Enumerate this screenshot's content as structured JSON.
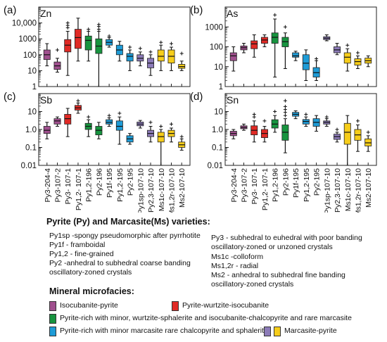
{
  "colors": {
    "isocubanite-pyrite": "#a0508e",
    "pyrite-wurtzite-isocubanite": "#e02a25",
    "pyrite-rich-wurtzite-sphalerite": "#17943f",
    "pyrite-rich-marcasite": "#1e9cd7",
    "marcasite-pyrite-purple": "#8c7bb8",
    "marcasite-pyrite-yellow": "#f6cd1a"
  },
  "chart_data": [
    {
      "type": "box",
      "panel_label": "(a)",
      "element": "Zn",
      "scale": "log",
      "ylim": [
        1,
        100000
      ],
      "yticks": [
        "1",
        "10",
        "100",
        "1000",
        "10,000"
      ],
      "categories": [
        "Py3-204-4",
        "Py3-107-2",
        "Py3- 107-1",
        "Py1,2- 107-1",
        "Py1,2-196",
        "Py2-196",
        "Py1f-195",
        "Py1,2-195",
        "Py2-195",
        "Py1sp-107-10",
        "Py2,3-107-10",
        "Ms1c-107-10",
        "Ms1,2r-107-10",
        "Ms2-107-10"
      ],
      "box_colors": [
        "isocubanite-pyrite",
        "isocubanite-pyrite",
        "pyrite-wurtzite-isocubanite",
        "pyrite-wurtzite-isocubanite",
        "pyrite-rich-wurtzite-sphalerite",
        "pyrite-rich-wurtzite-sphalerite",
        "pyrite-rich-marcasite",
        "pyrite-rich-marcasite",
        "pyrite-rich-marcasite",
        "marcasite-pyrite-purple",
        "marcasite-pyrite-purple",
        "marcasite-pyrite-yellow",
        "marcasite-pyrite-yellow",
        "marcasite-pyrite-yellow"
      ],
      "boxes": [
        {
          "min": 20,
          "q1": 50,
          "median": 100,
          "q3": 200,
          "max": 500,
          "outliers": []
        },
        {
          "min": 8,
          "q1": 12,
          "median": 20,
          "q3": 35,
          "max": 60,
          "outliers": [
            200
          ]
        },
        {
          "min": 5,
          "q1": 150,
          "median": 400,
          "q3": 900,
          "max": 3000,
          "outliers": [
            5000,
            7000,
            10000
          ]
        },
        {
          "min": 40,
          "q1": 250,
          "median": 1200,
          "q3": 4000,
          "max": 20000,
          "outliers": []
        },
        {
          "min": 40,
          "q1": 200,
          "median": 800,
          "q3": 1500,
          "max": 3000,
          "outliers": [
            4000
          ]
        },
        {
          "min": 1,
          "q1": 120,
          "median": 350,
          "q3": 1000,
          "max": 3000,
          "outliers": [
            4000,
            6000,
            8000
          ]
        },
        {
          "min": 300,
          "q1": 400,
          "median": 600,
          "q3": 900,
          "max": 1200,
          "outliers": [
            1500
          ]
        },
        {
          "min": 40,
          "q1": 100,
          "median": 200,
          "q3": 400,
          "max": 700,
          "outliers": []
        },
        {
          "min": 10,
          "q1": 40,
          "median": 80,
          "q3": 120,
          "max": 200,
          "outliers": [
            300
          ]
        },
        {
          "min": 20,
          "q1": 40,
          "median": 60,
          "q3": 100,
          "max": 150,
          "outliers": [
            250
          ]
        },
        {
          "min": 5,
          "q1": 15,
          "median": 30,
          "q3": 60,
          "max": 100,
          "outliers": [
            150
          ]
        },
        {
          "min": 10,
          "q1": 40,
          "median": 80,
          "q3": 200,
          "max": 400,
          "outliers": [
            600
          ]
        },
        {
          "min": 10,
          "q1": 30,
          "median": 80,
          "q3": 200,
          "max": 300,
          "outliers": [
            500
          ]
        },
        {
          "min": 10,
          "q1": 14,
          "median": 18,
          "q3": 25,
          "max": 40,
          "outliers": [
            120
          ]
        }
      ]
    },
    {
      "type": "box",
      "panel_label": "(b)",
      "element": "As",
      "scale": "log",
      "ylim": [
        1,
        10000
      ],
      "yticks": [
        "1",
        "10",
        "100",
        "1000"
      ],
      "categories": [
        "Py3-204-4",
        "Py3-107-2",
        "Py3- 107-1",
        "Py1,2- 107-1",
        "Py1,2-196",
        "Py2-196",
        "Py1f-195",
        "Py1,2-195",
        "Py2-195",
        "Py1sp-107-10",
        "Py2,3-107-10",
        "Ms1c-107-10",
        "Ms1,2r-107-10",
        "Ms2-107-10"
      ],
      "box_colors": [
        "isocubanite-pyrite",
        "isocubanite-pyrite",
        "pyrite-wurtzite-isocubanite",
        "pyrite-wurtzite-isocubanite",
        "pyrite-rich-wurtzite-sphalerite",
        "pyrite-rich-wurtzite-sphalerite",
        "pyrite-rich-marcasite",
        "pyrite-rich-marcasite",
        "pyrite-rich-marcasite",
        "marcasite-pyrite-purple",
        "marcasite-pyrite-purple",
        "marcasite-pyrite-yellow",
        "marcasite-pyrite-yellow",
        "marcasite-pyrite-yellow"
      ],
      "boxes": [
        {
          "min": 6,
          "q1": 20,
          "median": 35,
          "q3": 50,
          "max": 100,
          "outliers": []
        },
        {
          "min": 50,
          "q1": 70,
          "median": 90,
          "q3": 110,
          "max": 150,
          "outliers": []
        },
        {
          "min": 30,
          "q1": 80,
          "median": 140,
          "q3": 200,
          "max": 400,
          "outliers": []
        },
        {
          "min": 100,
          "q1": 150,
          "median": 220,
          "q3": 300,
          "max": 400,
          "outliers": []
        },
        {
          "min": 3,
          "q1": 150,
          "median": 300,
          "q3": 500,
          "max": 2500,
          "outliers": [
            4000
          ]
        },
        {
          "min": 8,
          "q1": 100,
          "median": 180,
          "q3": 300,
          "max": 500,
          "outliers": [
            1000
          ]
        },
        {
          "min": 20,
          "q1": 30,
          "median": 35,
          "q3": 50,
          "max": 60,
          "outliers": []
        },
        {
          "min": 2,
          "q1": 7,
          "median": 15,
          "q3": 40,
          "max": 70,
          "outliers": []
        },
        {
          "min": 2,
          "q1": 3,
          "median": 5,
          "q3": 9,
          "max": 20,
          "outliers": [
            25
          ]
        },
        {
          "min": 200,
          "q1": 230,
          "median": 270,
          "q3": 320,
          "max": 400,
          "outliers": []
        },
        {
          "min": 40,
          "q1": 50,
          "median": 70,
          "q3": 100,
          "max": 150,
          "outliers": []
        },
        {
          "min": 6,
          "q1": 15,
          "median": 30,
          "q3": 50,
          "max": 80,
          "outliers": [
            120
          ]
        },
        {
          "min": 8,
          "q1": 12,
          "median": 18,
          "q3": 25,
          "max": 35,
          "outliers": [
            50
          ]
        },
        {
          "min": 10,
          "q1": 15,
          "median": 20,
          "q3": 27,
          "max": 35,
          "outliers": []
        }
      ]
    },
    {
      "type": "box",
      "panel_label": "(c)",
      "element": "Sb",
      "scale": "log",
      "ylim": [
        0.01,
        100
      ],
      "yticks": [
        "0.01",
        "0.1",
        "1.0",
        "10"
      ],
      "categories": [
        "Py3-204-4",
        "Py3-107-2",
        "Py3- 107-1",
        "Py1,2- 107-1",
        "Py1,2-196",
        "Py2-196",
        "Py1f-195",
        "Py1,2-195",
        "Py2-195",
        "Py1sp-107-10",
        "Py2,3-107-10",
        "Ms1c-107-10",
        "Ms1,2r-107-10",
        "Ms2-107-10"
      ],
      "box_colors": [
        "isocubanite-pyrite",
        "isocubanite-pyrite",
        "pyrite-wurtzite-isocubanite",
        "pyrite-wurtzite-isocubanite",
        "pyrite-rich-wurtzite-sphalerite",
        "pyrite-rich-wurtzite-sphalerite",
        "pyrite-rich-marcasite",
        "pyrite-rich-marcasite",
        "pyrite-rich-marcasite",
        "marcasite-pyrite-purple",
        "marcasite-pyrite-purple",
        "marcasite-pyrite-yellow",
        "marcasite-pyrite-yellow",
        "marcasite-pyrite-yellow"
      ],
      "boxes": [
        {
          "min": 0.3,
          "q1": 0.6,
          "median": 0.9,
          "q3": 1.5,
          "max": 2.5,
          "outliers": []
        },
        {
          "min": 1.5,
          "q1": 2.0,
          "median": 3.0,
          "q3": 4.0,
          "max": 5.0,
          "outliers": []
        },
        {
          "min": 0.4,
          "q1": 2.0,
          "median": 4.0,
          "q3": 7.0,
          "max": 15,
          "outliers": []
        },
        {
          "min": 8,
          "q1": 12,
          "median": 16,
          "q3": 22,
          "max": 30,
          "outliers": [
            40
          ]
        },
        {
          "min": 0.4,
          "q1": 1.0,
          "median": 1.5,
          "q3": 2.2,
          "max": 3.5,
          "outliers": [
            5
          ]
        },
        {
          "min": 0.3,
          "q1": 0.5,
          "median": 0.9,
          "q3": 1.5,
          "max": 2.5,
          "outliers": []
        },
        {
          "min": 1.5,
          "q1": 2.0,
          "median": 2.5,
          "q3": 3.5,
          "max": 4.5,
          "outliers": [
            6
          ]
        },
        {
          "min": 0.15,
          "q1": 0.9,
          "median": 1.5,
          "q3": 3.0,
          "max": 5.0,
          "outliers": [
            8
          ]
        },
        {
          "min": 0.15,
          "q1": 0.2,
          "median": 0.3,
          "q3": 0.45,
          "max": 0.6,
          "outliers": []
        },
        {
          "min": 1.2,
          "q1": 1.6,
          "median": 2.0,
          "q3": 2.6,
          "max": 3.2,
          "outliers": []
        },
        {
          "min": 0.2,
          "q1": 0.4,
          "median": 0.6,
          "q3": 0.9,
          "max": 1.5,
          "outliers": [
            2.5
          ]
        },
        {
          "min": 0.01,
          "q1": 0.2,
          "median": 0.4,
          "q3": 0.7,
          "max": 1.0,
          "outliers": [
            1.5
          ]
        },
        {
          "min": 0.2,
          "q1": 0.4,
          "median": 0.6,
          "q3": 0.9,
          "max": 1.2,
          "outliers": [
            2
          ]
        },
        {
          "min": 0.07,
          "q1": 0.1,
          "median": 0.14,
          "q3": 0.2,
          "max": 0.3,
          "outliers": [
            0.4
          ]
        }
      ]
    },
    {
      "type": "box",
      "panel_label": "(d)",
      "element": "Sn",
      "scale": "log",
      "ylim": [
        0.01,
        100
      ],
      "yticks": [
        "0.01",
        "0.1",
        "1.0",
        "10"
      ],
      "categories": [
        "Py3-204-4",
        "Py3-107-2",
        "Py3- 107-1",
        "Py1,2- 107-1",
        "Py1,2-196",
        "Py2-196",
        "Py1f-195",
        "Py1,2-195",
        "Py2-195",
        "Py1sp-107-10",
        "Py2,3-107-10",
        "Ms1c-107-10",
        "Ms1,2r-107-10",
        "Ms2-107-10"
      ],
      "box_colors": [
        "isocubanite-pyrite",
        "isocubanite-pyrite",
        "pyrite-wurtzite-isocubanite",
        "pyrite-wurtzite-isocubanite",
        "pyrite-rich-wurtzite-sphalerite",
        "pyrite-rich-wurtzite-sphalerite",
        "pyrite-rich-marcasite",
        "pyrite-rich-marcasite",
        "pyrite-rich-marcasite",
        "marcasite-pyrite-purple",
        "marcasite-pyrite-purple",
        "marcasite-pyrite-yellow",
        "marcasite-pyrite-yellow",
        "marcasite-pyrite-yellow"
      ],
      "boxes": [
        {
          "min": 0.3,
          "q1": 0.45,
          "median": 0.6,
          "q3": 0.8,
          "max": 1.0,
          "outliers": []
        },
        {
          "min": 0.9,
          "q1": 1.1,
          "median": 1.3,
          "q3": 1.6,
          "max": 2.0,
          "outliers": []
        },
        {
          "min": 0.2,
          "q1": 0.5,
          "median": 0.9,
          "q3": 1.6,
          "max": 3.0,
          "outliers": [
            5,
            7
          ]
        },
        {
          "min": 0.2,
          "q1": 0.35,
          "median": 0.6,
          "q3": 1.0,
          "max": 1.5,
          "outliers": [
            3
          ]
        },
        {
          "min": 0.7,
          "q1": 1.2,
          "median": 2.0,
          "q3": 3.5,
          "max": 6.0,
          "outliers": [
            10
          ]
        },
        {
          "min": 0.05,
          "q1": 0.25,
          "median": 0.7,
          "q3": 1.8,
          "max": 4.0,
          "outliers": [
            6,
            9,
            13,
            19,
            40
          ]
        },
        {
          "min": 4.0,
          "q1": 5.5,
          "median": 7.0,
          "q3": 9.0,
          "max": 11,
          "outliers": []
        },
        {
          "min": 1.5,
          "q1": 2.0,
          "median": 2.8,
          "q3": 3.6,
          "max": 5.0,
          "outliers": [
            7
          ]
        },
        {
          "min": 0.8,
          "q1": 1.5,
          "median": 2.5,
          "q3": 4.0,
          "max": 6.0,
          "outliers": []
        },
        {
          "min": 1.5,
          "q1": 2.0,
          "median": 2.5,
          "q3": 3.0,
          "max": 4.0,
          "outliers": [
            5
          ]
        },
        {
          "min": 0.2,
          "q1": 0.28,
          "median": 0.4,
          "q3": 0.55,
          "max": 0.7,
          "outliers": [
            1.0
          ]
        },
        {
          "min": 0.01,
          "q1": 0.15,
          "median": 0.7,
          "q3": 2.2,
          "max": 6.0,
          "outliers": []
        },
        {
          "min": 0.06,
          "q1": 0.25,
          "median": 0.5,
          "q3": 1.0,
          "max": 1.8,
          "outliers": [
            3
          ]
        },
        {
          "min": 0.06,
          "q1": 0.12,
          "median": 0.18,
          "q3": 0.3,
          "max": 0.45,
          "outliers": [
            0.7
          ]
        }
      ]
    }
  ],
  "legend": {
    "varieties_title": "Pyrite (Py) and Marcasite(Ms) varieties:",
    "varieties_left": [
      "Py1sp -spongy pseudomorphic after pyrrhotite",
      "Py1f - framboidal",
      "Py1,2 - fine-grained",
      "Py2 -anhedral to subhedral coarse banding\noscillatory-zoned crystals"
    ],
    "varieties_right": [
      "Py3 - subhedral to euhedral with poor banding\noscillatory-zoned or unzoned crystals",
      "Ms1c -colloform",
      "Ms1,2r - radial",
      "Ms2 - anhedral to subhedral fine banding\noscillatory-zoned crystals"
    ],
    "microfacies_title": "Mineral microfacies:",
    "microfacies": [
      {
        "label": "Isocubanite-pyrite",
        "color_keys": [
          "isocubanite-pyrite"
        ]
      },
      {
        "label": "Pyrite-wurtzite-isocubanite",
        "color_keys": [
          "pyrite-wurtzite-isocubanite"
        ]
      },
      {
        "label": "Pyrite-rich with minor, wurtzite-sphalerite and isocubanite-chalcopyrite and rare marcasite",
        "color_keys": [
          "pyrite-rich-wurtzite-sphalerite"
        ]
      },
      {
        "label": "Pyrite-rich with minor marcasite rare chalcopyrite and sphalerite",
        "color_keys": [
          "pyrite-rich-marcasite"
        ]
      },
      {
        "label": "Marcasite-pyrite",
        "color_keys": [
          "marcasite-pyrite-purple",
          "marcasite-pyrite-yellow"
        ]
      }
    ]
  }
}
